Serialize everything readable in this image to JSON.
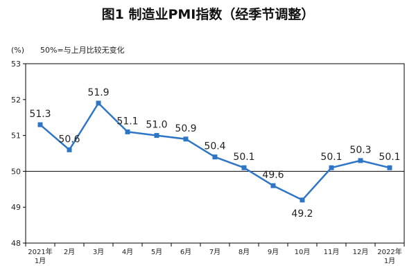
{
  "chart_data": {
    "type": "line",
    "title": "图1  制造业PMI指数（经季节调整）",
    "ylabel": "(%)",
    "annotation": "50%=与上月比较无变化",
    "ylim": [
      48,
      53
    ],
    "yticks": [
      "48",
      "49",
      "50",
      "51",
      "52",
      "53"
    ],
    "reference_line": 50,
    "categories": [
      [
        "2021年",
        "1月"
      ],
      [
        "2月"
      ],
      [
        "3月"
      ],
      [
        "4月"
      ],
      [
        "5月"
      ],
      [
        "6月"
      ],
      [
        "7月"
      ],
      [
        "8月"
      ],
      [
        "9月"
      ],
      [
        "10月"
      ],
      [
        "11月"
      ],
      [
        "12月"
      ],
      [
        "2022年",
        "1月"
      ]
    ],
    "values": [
      51.3,
      50.6,
      51.9,
      51.1,
      51.0,
      50.9,
      50.4,
      50.1,
      49.6,
      49.2,
      50.1,
      50.3,
      50.1
    ],
    "labels": [
      "51.3",
      "50.6",
      "51.9",
      "51.1",
      "51.0",
      "50.9",
      "50.4",
      "50.1",
      "49.6",
      "49.2",
      "50.1",
      "50.3",
      "50.1"
    ],
    "label_side": [
      "above",
      "above",
      "above",
      "above",
      "above",
      "above",
      "above",
      "above",
      "above",
      "below",
      "above",
      "above",
      "above"
    ],
    "line_color": "#2e75c6",
    "grid": false
  }
}
